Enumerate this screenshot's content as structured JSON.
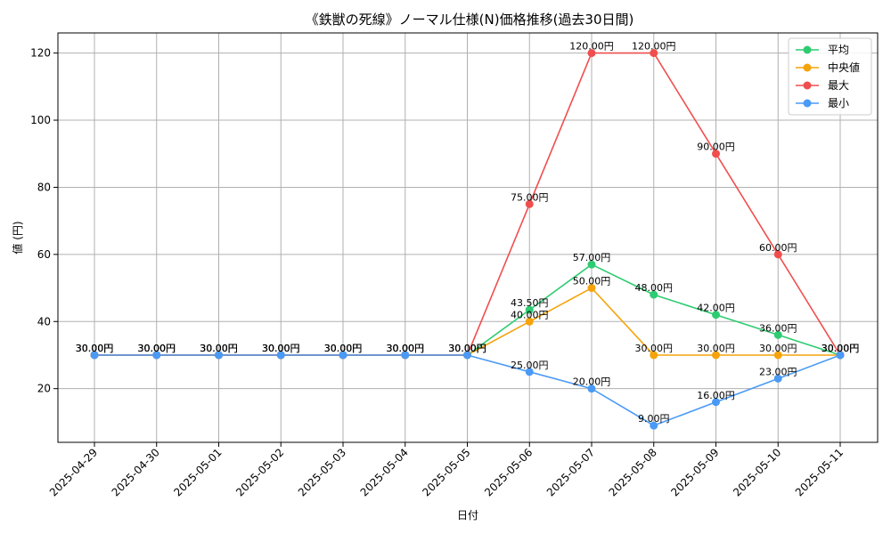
{
  "chart_data": {
    "type": "line",
    "title": "《鉄獣の死線》ノーマル仕様(N)価格推移(過去30日間)",
    "xlabel": "日付",
    "ylabel": "値 (円)",
    "ylim": [
      4,
      126
    ],
    "yticks": [
      20,
      40,
      60,
      80,
      100,
      120
    ],
    "grid": true,
    "legend_position": "top-right",
    "label_suffix": "円",
    "categories": [
      "2025-04-29",
      "2025-04-30",
      "2025-05-01",
      "2025-05-02",
      "2025-05-03",
      "2025-05-04",
      "2025-05-05",
      "2025-05-06",
      "2025-05-07",
      "2025-05-08",
      "2025-05-09",
      "2025-05-10",
      "2025-05-11"
    ],
    "series": [
      {
        "name": "平均",
        "color": "#2ecc71",
        "values": [
          30,
          30,
          30,
          30,
          30,
          30,
          30,
          43.5,
          57,
          48,
          42,
          36,
          30
        ],
        "labels": [
          "30.00円",
          "30.00円",
          "30.00円",
          "30.00円",
          "30.00円",
          "30.00円",
          "30.00円",
          "43.50円",
          "57.00円",
          "48.00円",
          "42.00円",
          "36.00円",
          "30.00円"
        ]
      },
      {
        "name": "中央値",
        "color": "#f5a30a",
        "values": [
          30,
          30,
          30,
          30,
          30,
          30,
          30,
          40,
          50,
          30,
          30,
          30,
          30
        ],
        "labels": [
          "30.00円",
          "30.00円",
          "30.00円",
          "30.00円",
          "30.00円",
          "30.00円",
          "30.00円",
          "40.00円",
          "50.00円",
          "30.00円",
          "30.00円",
          "30.00円",
          "30.00円"
        ]
      },
      {
        "name": "最大",
        "color": "#f04e4e",
        "values": [
          30,
          30,
          30,
          30,
          30,
          30,
          30,
          75,
          120,
          120,
          90,
          60,
          30
        ],
        "labels": [
          "30.00円",
          "30.00円",
          "30.00円",
          "30.00円",
          "30.00円",
          "30.00円",
          "30.00円",
          "75.00円",
          "120.00円",
          "120.00円",
          "90.00円",
          "60.00円",
          "30.00円"
        ]
      },
      {
        "name": "最小",
        "color": "#4a9af5",
        "values": [
          30,
          30,
          30,
          30,
          30,
          30,
          30,
          25,
          20,
          9,
          16,
          23,
          30
        ],
        "labels": [
          "30.00円",
          "30.00円",
          "30.00円",
          "30.00円",
          "30.00円",
          "30.00円",
          "30.00円",
          "25.00円",
          "20.00円",
          "9.00円",
          "16.00円",
          "23.00円",
          "30.00円"
        ]
      }
    ]
  }
}
